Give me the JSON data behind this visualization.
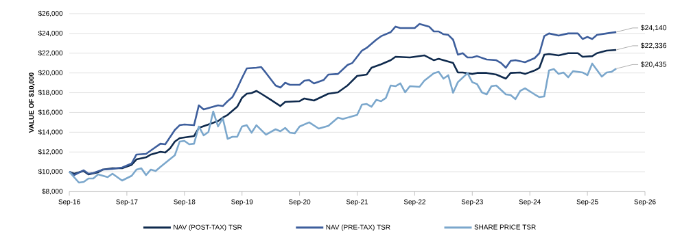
{
  "chart_data": {
    "type": "line",
    "ylabel": "VALUE OF $10,000",
    "xlim": [
      "2016-09",
      "2026-09"
    ],
    "ylim": [
      8000,
      26000
    ],
    "xticks": [
      {
        "value": "2016-09",
        "label": "Sep-16"
      },
      {
        "value": "2017-09",
        "label": "Sep-17"
      },
      {
        "value": "2018-09",
        "label": "Sep-18"
      },
      {
        "value": "2019-09",
        "label": "Sep-19"
      },
      {
        "value": "2020-09",
        "label": "Sep-20"
      },
      {
        "value": "2021-09",
        "label": "Sep-21"
      },
      {
        "value": "2022-09",
        "label": "Sep-22"
      },
      {
        "value": "2023-09",
        "label": "Sep-23"
      },
      {
        "value": "2024-09",
        "label": "Sep-24"
      },
      {
        "value": "2025-09",
        "label": "Sep-25"
      },
      {
        "value": "2026-09",
        "label": "Sep-26"
      }
    ],
    "yticks": [
      {
        "value": 8000,
        "label": "$8,000"
      },
      {
        "value": 10000,
        "label": "$10,000"
      },
      {
        "value": 12000,
        "label": "$12,000"
      },
      {
        "value": 14000,
        "label": "$14,000"
      },
      {
        "value": 16000,
        "label": "$16,000"
      },
      {
        "value": 18000,
        "label": "$18,000"
      },
      {
        "value": 20000,
        "label": "$20,000"
      },
      {
        "value": 22000,
        "label": "$22,000"
      },
      {
        "value": 24000,
        "label": "$24,000"
      },
      {
        "value": 26000,
        "label": "$26,000"
      }
    ],
    "grid": "y",
    "legend": "bottom",
    "marker": "none",
    "line_style": "solid",
    "series": [
      {
        "name": "NAV (POST-TAX) TSR",
        "color": "#0f2a4d",
        "x": [
          "2016-09",
          "2016-10",
          "2016-12",
          "2017-01",
          "2017-03",
          "2017-04",
          "2017-06",
          "2017-08",
          "2017-10",
          "2017-11",
          "2018-01",
          "2018-02",
          "2018-04",
          "2018-05",
          "2018-06",
          "2018-07",
          "2018-08",
          "2018-10",
          "2018-11",
          "2018-12",
          "2019-02",
          "2019-04",
          "2019-05",
          "2019-06",
          "2019-08",
          "2019-09",
          "2019-10",
          "2019-11",
          "2019-12",
          "2020-01",
          "2020-03",
          "2020-05",
          "2020-06",
          "2020-09",
          "2020-10",
          "2020-12",
          "2021-03",
          "2021-05",
          "2021-07",
          "2021-09",
          "2021-11",
          "2021-12",
          "2022-02",
          "2022-04",
          "2022-05",
          "2022-08",
          "2022-09",
          "2022-11",
          "2023-01",
          "2023-02",
          "2023-05",
          "2023-06",
          "2023-07",
          "2023-09",
          "2023-10",
          "2023-12",
          "2024-02",
          "2024-04",
          "2024-05",
          "2024-07",
          "2024-08",
          "2024-10",
          "2024-11",
          "2024-12",
          "2025-01",
          "2025-03",
          "2025-05",
          "2025-07",
          "2025-08",
          "2025-10",
          "2025-11",
          "2026-01",
          "2026-03"
        ],
        "values": [
          10000,
          9800,
          10070,
          9730,
          9940,
          10220,
          10350,
          10350,
          10700,
          11250,
          11460,
          11740,
          12010,
          11940,
          12360,
          13050,
          13400,
          13540,
          13610,
          14440,
          14780,
          15130,
          15480,
          15750,
          16580,
          17480,
          17900,
          17970,
          18180,
          17900,
          17280,
          16650,
          17070,
          17140,
          17420,
          17210,
          17900,
          18040,
          18730,
          19700,
          19840,
          20530,
          20880,
          21290,
          21640,
          21570,
          21640,
          21780,
          21290,
          21430,
          21010,
          20050,
          20050,
          19900,
          20000,
          20000,
          19840,
          19420,
          20000,
          20050,
          19900,
          20250,
          20530,
          21850,
          21920,
          21780,
          22000,
          22000,
          21640,
          21700,
          22000,
          22260,
          22336
        ]
      },
      {
        "name": "NAV (PRE-TAX) TSR",
        "color": "#3d5e9c",
        "x": [
          "2016-09",
          "2016-10",
          "2016-12",
          "2017-01",
          "2017-02",
          "2017-04",
          "2017-06",
          "2017-08",
          "2017-10",
          "2017-11",
          "2018-01",
          "2018-02",
          "2018-04",
          "2018-05",
          "2018-07",
          "2018-08",
          "2018-09",
          "2018-11",
          "2018-12",
          "2019-01",
          "2019-04",
          "2019-05",
          "2019-06",
          "2019-07",
          "2019-08",
          "2019-09",
          "2019-10",
          "2019-12",
          "2020-01",
          "2020-02",
          "2020-04",
          "2020-05",
          "2020-06",
          "2020-07",
          "2020-09",
          "2020-10",
          "2020-11",
          "2020-12",
          "2021-02",
          "2021-03",
          "2021-05",
          "2021-07",
          "2021-08",
          "2021-10",
          "2021-11",
          "2022-01",
          "2022-02",
          "2022-04",
          "2022-05",
          "2022-06",
          "2022-09",
          "2022-10",
          "2022-12",
          "2023-01",
          "2023-02",
          "2023-03",
          "2023-04",
          "2023-05",
          "2023-06",
          "2023-07",
          "2023-08",
          "2023-09",
          "2023-10",
          "2023-12",
          "2024-02",
          "2024-03",
          "2024-04",
          "2024-05",
          "2024-06",
          "2024-08",
          "2024-10",
          "2024-11",
          "2024-12",
          "2025-01",
          "2025-03",
          "2025-05",
          "2025-07",
          "2025-08",
          "2025-09",
          "2025-10",
          "2025-11",
          "2026-01",
          "2026-03"
        ],
        "values": [
          10000,
          9660,
          10150,
          9800,
          9870,
          10220,
          10280,
          10420,
          10840,
          11740,
          11810,
          12150,
          12840,
          12780,
          14230,
          14710,
          14780,
          14710,
          16720,
          16310,
          16720,
          16650,
          17140,
          17550,
          18450,
          19490,
          20460,
          20530,
          20600,
          20000,
          18730,
          18520,
          19010,
          18800,
          18800,
          19210,
          19280,
          18940,
          19280,
          19840,
          19900,
          20810,
          21010,
          22260,
          22540,
          23370,
          23720,
          24130,
          24690,
          24550,
          24550,
          24960,
          24690,
          24200,
          24200,
          23920,
          23850,
          23370,
          21850,
          22000,
          21570,
          21570,
          21700,
          21360,
          21290,
          21010,
          20530,
          21220,
          21290,
          21080,
          21500,
          22000,
          23720,
          24000,
          23780,
          24000,
          24000,
          23440,
          23650,
          23440,
          23850,
          24000,
          24140
        ]
      },
      {
        "name": "SHARE PRICE TSR",
        "color": "#7ba7cc",
        "x": [
          "2016-09",
          "2016-11",
          "2016-12",
          "2017-01",
          "2017-02",
          "2017-03",
          "2017-05",
          "2017-06",
          "2017-08",
          "2017-10",
          "2017-11",
          "2017-12",
          "2018-01",
          "2018-02",
          "2018-03",
          "2018-04",
          "2018-07",
          "2018-08",
          "2018-09",
          "2018-10",
          "2018-11",
          "2018-12",
          "2019-01",
          "2019-02",
          "2019-03",
          "2019-04",
          "2019-05",
          "2019-06",
          "2019-07",
          "2019-08",
          "2019-09",
          "2019-10",
          "2019-11",
          "2019-12",
          "2020-02",
          "2020-04",
          "2020-05",
          "2020-06",
          "2020-07",
          "2020-08",
          "2020-09",
          "2020-11",
          "2021-01",
          "2021-03",
          "2021-05",
          "2021-06",
          "2021-09",
          "2021-10",
          "2021-11",
          "2021-12",
          "2022-01",
          "2022-02",
          "2022-03",
          "2022-04",
          "2022-05",
          "2022-06",
          "2022-07",
          "2022-08",
          "2022-10",
          "2022-11",
          "2023-01",
          "2023-02",
          "2023-03",
          "2023-04",
          "2023-05",
          "2023-06",
          "2023-08",
          "2023-09",
          "2023-10",
          "2023-11",
          "2023-12",
          "2024-01",
          "2024-02",
          "2024-04",
          "2024-05",
          "2024-06",
          "2024-07",
          "2024-08",
          "2024-10",
          "2024-11",
          "2024-12",
          "2025-01",
          "2025-02",
          "2025-03",
          "2025-04",
          "2025-05",
          "2025-06",
          "2025-08",
          "2025-09",
          "2025-10",
          "2025-12",
          "2026-01",
          "2026-02",
          "2026-03"
        ],
        "values": [
          10000,
          8900,
          8970,
          9320,
          9320,
          9730,
          9450,
          9800,
          9110,
          9590,
          10220,
          10350,
          9660,
          10220,
          10070,
          10490,
          11670,
          13050,
          13120,
          12780,
          12840,
          14580,
          13680,
          14020,
          16100,
          14580,
          15410,
          13330,
          13540,
          13540,
          14580,
          14710,
          13950,
          14710,
          13750,
          14300,
          14090,
          14440,
          13950,
          13880,
          14580,
          15000,
          14370,
          14650,
          15480,
          15340,
          15750,
          16790,
          16860,
          16580,
          17280,
          17140,
          17480,
          18730,
          18660,
          18940,
          18040,
          18660,
          18590,
          19210,
          19980,
          20110,
          19420,
          19770,
          18000,
          19070,
          19980,
          19070,
          18870,
          18040,
          17830,
          18660,
          18730,
          17830,
          17760,
          17350,
          18180,
          18450,
          17830,
          17550,
          17620,
          20250,
          20390,
          19900,
          20050,
          19560,
          20180,
          20050,
          19770,
          20950,
          19630,
          20050,
          20110,
          20435
        ]
      }
    ],
    "annotations": [
      {
        "text": "$24,140",
        "x": "2026-03",
        "y": 24140
      },
      {
        "text": "$22,336",
        "x": "2026-03",
        "y": 22336
      },
      {
        "text": "$20,435",
        "x": "2026-03",
        "y": 20435
      }
    ]
  }
}
